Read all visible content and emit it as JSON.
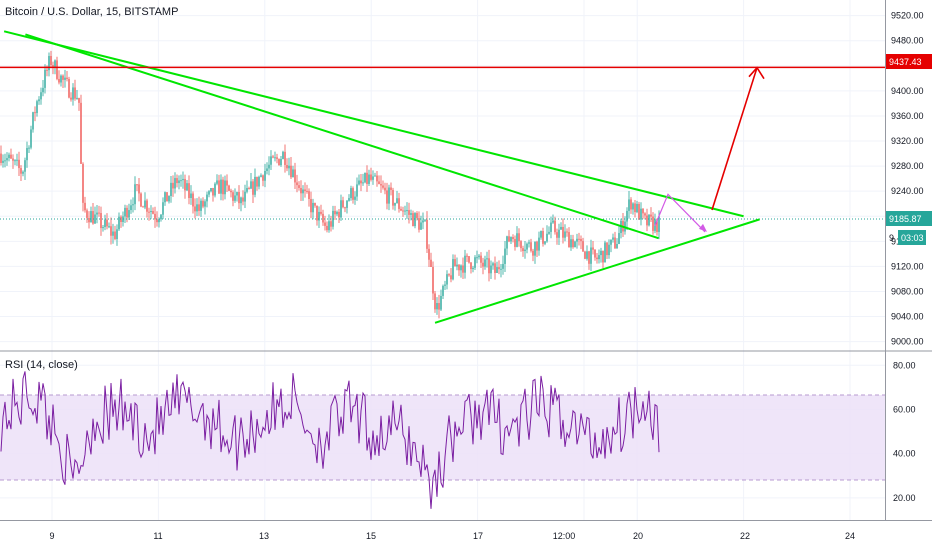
{
  "header": {
    "title": "Bitcoin / U.S. Dollar, 15, BITSTAMP"
  },
  "rsi": {
    "title": "RSI (14, close)",
    "upper_band": 70,
    "lower_band": 30
  },
  "price_axis": {
    "ticks": [
      "9520.00",
      "9480.00",
      "9440.00",
      "9400.00",
      "9360.00",
      "9320.00",
      "9280.00",
      "9240.00",
      "9200.00",
      "9160.00",
      "9120.00",
      "9080.00",
      "9040.00",
      "9000.00"
    ],
    "resistance_label": "9437.43",
    "current_price_label": "9185.87",
    "countdown_label": "03:03",
    "partial_label": "9"
  },
  "rsi_axis": {
    "ticks": [
      "80.00",
      "60.00",
      "40.00",
      "20.00"
    ]
  },
  "time_axis": {
    "ticks": [
      "9",
      "11",
      "13",
      "15",
      "17",
      "12:00",
      "20",
      "22",
      "24"
    ]
  },
  "colors": {
    "up": "#26a69a",
    "down": "#ef5350",
    "trendline": "#00e600",
    "resistance": "#e50000",
    "projection_up": "#e50000",
    "projection_path": "#d35ae6",
    "rsi_line": "#7b1fa2",
    "rsi_band": "#e9d9f7",
    "price_dotted": "#26a69a"
  },
  "chart_data": {
    "type": "candlestick",
    "symbol": "Bitcoin / U.S. Dollar",
    "interval": "15",
    "exchange": "BITSTAMP",
    "ylim": [
      8985,
      9545
    ],
    "last_price": 9185.87,
    "resistance_level": 9437.43,
    "price_path": [
      {
        "t": 0,
        "p": 9300
      },
      {
        "t": 0.03,
        "p": 9270
      },
      {
        "t": 0.05,
        "p": 9380
      },
      {
        "t": 0.07,
        "p": 9450
      },
      {
        "t": 0.09,
        "p": 9410
      },
      {
        "t": 0.11,
        "p": 9390
      },
      {
        "t": 0.115,
        "p": 9210
      },
      {
        "t": 0.13,
        "p": 9200
      },
      {
        "t": 0.16,
        "p": 9170
      },
      {
        "t": 0.19,
        "p": 9240
      },
      {
        "t": 0.22,
        "p": 9200
      },
      {
        "t": 0.25,
        "p": 9260
      },
      {
        "t": 0.28,
        "p": 9210
      },
      {
        "t": 0.31,
        "p": 9250
      },
      {
        "t": 0.34,
        "p": 9220
      },
      {
        "t": 0.37,
        "p": 9270
      },
      {
        "t": 0.4,
        "p": 9300
      },
      {
        "t": 0.43,
        "p": 9230
      },
      {
        "t": 0.46,
        "p": 9180
      },
      {
        "t": 0.49,
        "p": 9230
      },
      {
        "t": 0.52,
        "p": 9260
      },
      {
        "t": 0.55,
        "p": 9230
      },
      {
        "t": 0.58,
        "p": 9200
      },
      {
        "t": 0.6,
        "p": 9180
      },
      {
        "t": 0.615,
        "p": 9050
      },
      {
        "t": 0.64,
        "p": 9120
      },
      {
        "t": 0.67,
        "p": 9130
      },
      {
        "t": 0.7,
        "p": 9110
      },
      {
        "t": 0.72,
        "p": 9170
      },
      {
        "t": 0.75,
        "p": 9150
      },
      {
        "t": 0.78,
        "p": 9180
      },
      {
        "t": 0.81,
        "p": 9160
      },
      {
        "t": 0.84,
        "p": 9130
      },
      {
        "t": 0.87,
        "p": 9160
      },
      {
        "t": 0.89,
        "p": 9225
      },
      {
        "t": 0.91,
        "p": 9190
      },
      {
        "t": 0.93,
        "p": 9187
      }
    ],
    "drawings": {
      "upper_trendline": [
        {
          "day": "8.1",
          "p": 9495
        },
        {
          "day": "22.0",
          "p": 9200
        }
      ],
      "mid_trendline": [
        {
          "day": "8.5",
          "p": 9490
        },
        {
          "day": "20.4",
          "p": 9165
        }
      ],
      "support_trendline": [
        {
          "day": "16.2",
          "p": 9030
        },
        {
          "day": "22.3",
          "p": 9195
        }
      ],
      "projection_zigzag": [
        {
          "p": 9185
        },
        {
          "p": 9235
        },
        {
          "p": 9175
        }
      ],
      "projection_arrow_target": 9437
    },
    "rsi_series": {
      "ylim": [
        10,
        86
      ],
      "bands": [
        30,
        70
      ],
      "path": [
        {
          "t": 0,
          "p": 55
        },
        {
          "t": 0.04,
          "p": 68
        },
        {
          "t": 0.06,
          "p": 62
        },
        {
          "t": 0.09,
          "p": 40
        },
        {
          "t": 0.1,
          "p": 25
        },
        {
          "t": 0.13,
          "p": 55
        },
        {
          "t": 0.17,
          "p": 60
        },
        {
          "t": 0.21,
          "p": 48
        },
        {
          "t": 0.25,
          "p": 63
        },
        {
          "t": 0.29,
          "p": 58
        },
        {
          "t": 0.33,
          "p": 45
        },
        {
          "t": 0.37,
          "p": 55
        },
        {
          "t": 0.41,
          "p": 65
        },
        {
          "t": 0.45,
          "p": 45
        },
        {
          "t": 0.49,
          "p": 60
        },
        {
          "t": 0.53,
          "p": 48
        },
        {
          "t": 0.56,
          "p": 52
        },
        {
          "t": 0.59,
          "p": 40
        },
        {
          "t": 0.61,
          "p": 25
        },
        {
          "t": 0.64,
          "p": 50
        },
        {
          "t": 0.68,
          "p": 60
        },
        {
          "t": 0.72,
          "p": 50
        },
        {
          "t": 0.76,
          "p": 62
        },
        {
          "t": 0.8,
          "p": 55
        },
        {
          "t": 0.84,
          "p": 45
        },
        {
          "t": 0.88,
          "p": 55
        },
        {
          "t": 0.91,
          "p": 68
        },
        {
          "t": 0.93,
          "p": 52
        }
      ]
    }
  }
}
